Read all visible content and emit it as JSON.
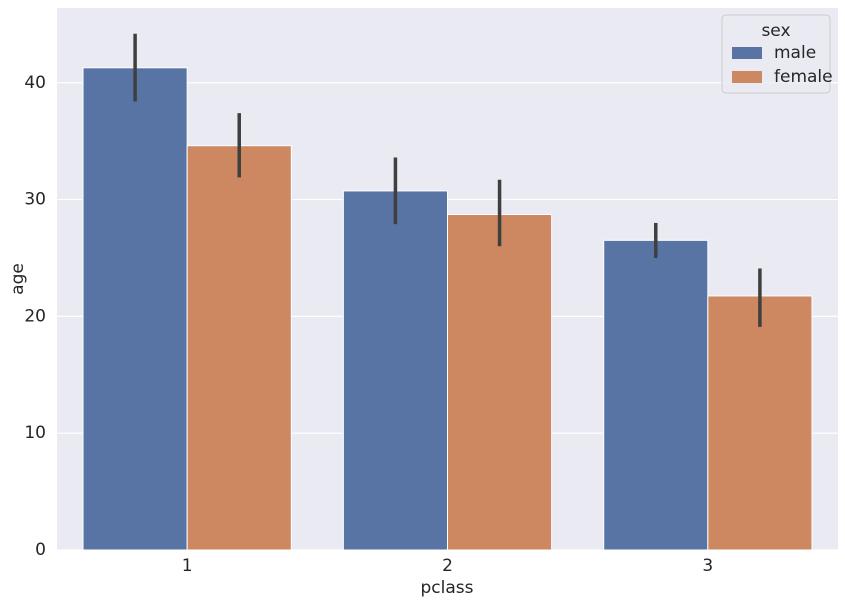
{
  "chart_data": {
    "type": "bar",
    "x_label": "pclass",
    "y_label": "age",
    "categories": [
      "1",
      "2",
      "3"
    ],
    "series": [
      {
        "name": "male",
        "color": "#5874a5",
        "values": [
          41.28,
          30.74,
          26.51
        ],
        "ci_low": [
          38.4,
          27.9,
          25.0
        ],
        "ci_high": [
          44.2,
          33.6,
          28.0
        ]
      },
      {
        "name": "female",
        "color": "#cd8862",
        "values": [
          34.61,
          28.72,
          21.75
        ],
        "ci_low": [
          31.9,
          26.0,
          19.1
        ],
        "ci_high": [
          37.4,
          31.7,
          24.1
        ]
      }
    ],
    "legend_title": "sex",
    "legend_position": "upper right",
    "ylim": [
      0,
      46.4
    ],
    "yticks": [
      0,
      10,
      20,
      30,
      40
    ],
    "grid": true
  }
}
